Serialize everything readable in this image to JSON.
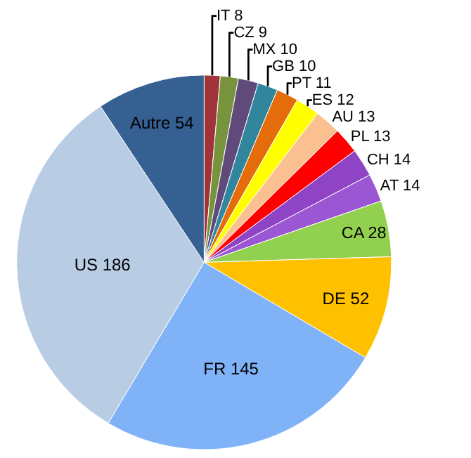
{
  "chart_data": {
    "type": "pie",
    "legend": false,
    "categories": [
      "IT 8",
      "CZ 9",
      "MX 10",
      "GB 10",
      "PT 11",
      "ES 12",
      "AU 13",
      "PL 13",
      "CH 14",
      "AT 14",
      "CA 28",
      "DE 52",
      "FR 145",
      "US 186",
      "Autre 54"
    ],
    "values": [
      8,
      9,
      10,
      10,
      11,
      12,
      13,
      13,
      14,
      14,
      28,
      52,
      145,
      186,
      54
    ],
    "colors": [
      "#a0343a",
      "#77933c",
      "#604a7b",
      "#31859c",
      "#e46c0a",
      "#ffff00",
      "#fac090",
      "#ff0000",
      "#8e44c4",
      "#9b57d3",
      "#92d050",
      "#ffc000",
      "#7fb2f7",
      "#b8cce4",
      "#366092"
    ]
  }
}
